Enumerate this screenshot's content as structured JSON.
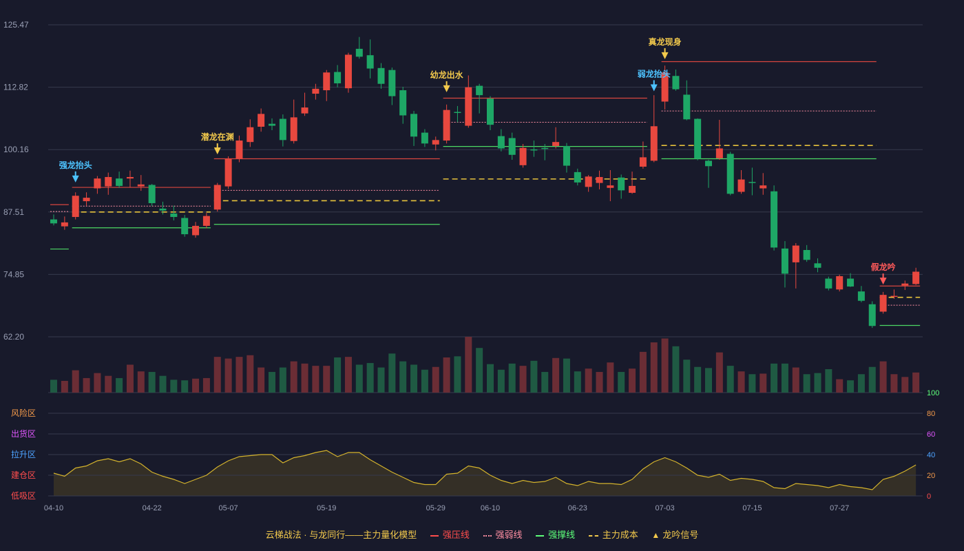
{
  "chart_data": {
    "type": "candlestick",
    "title": "云梯战法 · 与龙同行——主力量化模型",
    "x_ticks": [
      "04-10",
      "04-22",
      "05-07",
      "05-19",
      "05-29",
      "06-10",
      "06-23",
      "07-03",
      "07-15",
      "07-27"
    ],
    "price_axis": {
      "ticks": [
        "62.20",
        "74.85",
        "87.51",
        "100.16",
        "112.82",
        "125.47"
      ],
      "ylim": [
        62.2,
        125.47
      ]
    },
    "osc_axis": {
      "ticks": [
        "0",
        "20",
        "40",
        "60",
        "80",
        "100"
      ],
      "ylim": [
        0,
        100
      ]
    },
    "zones": [
      {
        "label": "风险区",
        "value": 80,
        "color": "#f2994a"
      },
      {
        "label": "出货区",
        "value": 60,
        "color": "#e056fd"
      },
      {
        "label": "拉升区",
        "value": 40,
        "color": "#4da3ff"
      },
      {
        "label": "建仓区",
        "value": 20,
        "color": "#ff4d4d"
      },
      {
        "label": "低吸区",
        "value": 0,
        "color": "#ff4d4d"
      }
    ],
    "colors": {
      "up": "#e8483f",
      "down": "#1ea766",
      "vol_up": "#6b2d35",
      "vol_down": "#1f5a43",
      "osc": "#d4b32c",
      "grid": "#363a4d",
      "axis": "#9aa0b5"
    },
    "candles": [
      [
        86.0,
        85.2,
        87.0,
        84.8,
        "04-10"
      ],
      [
        84.6,
        85.4,
        86.6,
        83.9,
        ""
      ],
      [
        86.5,
        90.8,
        91.5,
        86.0,
        ""
      ],
      [
        89.7,
        90.4,
        91.5,
        88.8,
        ""
      ],
      [
        92.3,
        94.3,
        94.8,
        91.2,
        ""
      ],
      [
        92.7,
        94.6,
        95.5,
        91.0,
        ""
      ],
      [
        94.3,
        92.8,
        95.7,
        92.4,
        ""
      ],
      [
        94.3,
        94.6,
        95.9,
        92.5,
        ""
      ],
      [
        92.7,
        93.1,
        95.0,
        91.8,
        ""
      ],
      [
        93.0,
        89.3,
        93.2,
        88.7,
        "04-22"
      ],
      [
        88.2,
        87.8,
        89.6,
        87.0,
        ""
      ],
      [
        87.2,
        86.5,
        88.8,
        85.8,
        ""
      ],
      [
        86.3,
        83.0,
        86.9,
        82.5,
        ""
      ],
      [
        82.8,
        84.7,
        85.5,
        82.3,
        ""
      ],
      [
        84.7,
        86.7,
        87.3,
        84.2,
        ""
      ],
      [
        88.0,
        93.0,
        93.4,
        87.6,
        ""
      ],
      [
        92.7,
        98.3,
        98.8,
        92.2,
        "05-07"
      ],
      [
        98.3,
        102.0,
        103.0,
        97.6,
        ""
      ],
      [
        101.7,
        104.7,
        106.3,
        100.7,
        ""
      ],
      [
        104.8,
        107.4,
        108.5,
        103.8,
        ""
      ],
      [
        105.4,
        105.0,
        106.5,
        104.1,
        ""
      ],
      [
        106.4,
        102.1,
        107.3,
        100.8,
        ""
      ],
      [
        101.9,
        106.7,
        110.3,
        101.4,
        ""
      ],
      [
        107.5,
        108.7,
        111.7,
        107.0,
        ""
      ],
      [
        111.5,
        112.5,
        113.5,
        110.3,
        ""
      ],
      [
        112.2,
        115.8,
        116.3,
        110.0,
        "05-19"
      ],
      [
        115.9,
        113.6,
        117.3,
        112.8,
        ""
      ],
      [
        112.6,
        119.4,
        119.8,
        111.7,
        ""
      ],
      [
        120.6,
        119.0,
        123.0,
        118.6,
        ""
      ],
      [
        119.3,
        116.6,
        122.5,
        114.6,
        ""
      ],
      [
        116.7,
        113.5,
        117.7,
        112.5,
        ""
      ],
      [
        116.3,
        111.0,
        116.8,
        109.2,
        ""
      ],
      [
        112.2,
        107.1,
        112.9,
        105.4,
        ""
      ],
      [
        107.4,
        102.8,
        108.0,
        100.9,
        ""
      ],
      [
        103.6,
        101.4,
        104.3,
        100.7,
        ""
      ],
      [
        101.2,
        102.1,
        102.8,
        100.0,
        "05-29"
      ],
      [
        102.0,
        108.2,
        109.3,
        101.4,
        ""
      ],
      [
        107.8,
        107.6,
        109.0,
        105.7,
        ""
      ],
      [
        105.0,
        112.8,
        115.2,
        104.6,
        ""
      ],
      [
        113.1,
        111.2,
        113.5,
        107.5,
        ""
      ],
      [
        110.5,
        105.2,
        111.0,
        104.1,
        "06-10"
      ],
      [
        102.9,
        100.4,
        104.3,
        99.8,
        ""
      ],
      [
        102.5,
        99.1,
        103.6,
        98.1,
        ""
      ],
      [
        97.0,
        100.5,
        101.3,
        96.5,
        ""
      ],
      [
        100.2,
        100.0,
        102.0,
        98.7,
        ""
      ],
      [
        100.5,
        100.4,
        101.3,
        98.0,
        ""
      ],
      [
        100.9,
        101.7,
        104.7,
        100.4,
        ""
      ],
      [
        100.9,
        96.9,
        101.5,
        95.5,
        ""
      ],
      [
        95.6,
        93.5,
        96.3,
        92.9,
        "06-23"
      ],
      [
        92.6,
        94.7,
        95.0,
        91.6,
        ""
      ],
      [
        93.4,
        94.6,
        95.9,
        92.1,
        ""
      ],
      [
        92.4,
        92.9,
        96.0,
        89.7,
        ""
      ],
      [
        94.5,
        91.9,
        95.1,
        90.2,
        ""
      ],
      [
        91.4,
        92.8,
        95.7,
        91.2,
        ""
      ],
      [
        96.7,
        98.6,
        101.8,
        96.3,
        ""
      ],
      [
        97.9,
        104.9,
        111.2,
        97.6,
        ""
      ],
      [
        109.9,
        115.8,
        117.2,
        108.3,
        "07-03"
      ],
      [
        115.1,
        112.4,
        116.4,
        112.1,
        ""
      ],
      [
        111.3,
        106.3,
        114.2,
        106.1,
        ""
      ],
      [
        106.4,
        98.3,
        106.5,
        98.0,
        ""
      ],
      [
        97.9,
        96.8,
        98.1,
        92.4,
        ""
      ],
      [
        98.4,
        100.4,
        106.2,
        98.1,
        ""
      ],
      [
        99.3,
        91.2,
        99.7,
        90.9,
        ""
      ],
      [
        91.6,
        94.1,
        96.0,
        91.2,
        ""
      ],
      [
        93.6,
        93.4,
        96.5,
        90.9,
        "07-15"
      ],
      [
        92.3,
        92.9,
        95.4,
        91.0,
        ""
      ],
      [
        91.7,
        80.3,
        92.9,
        79.7,
        ""
      ],
      [
        80.1,
        75.0,
        81.6,
        72.2,
        ""
      ],
      [
        77.3,
        80.7,
        81.2,
        72.0,
        ""
      ],
      [
        79.8,
        77.8,
        80.8,
        77.4,
        ""
      ],
      [
        77.1,
        76.2,
        78.1,
        75.3,
        ""
      ],
      [
        74.0,
        72.0,
        74.4,
        71.6,
        ""
      ],
      [
        71.8,
        74.5,
        74.8,
        71.4,
        "07-27"
      ],
      [
        74.0,
        72.4,
        75.1,
        72.3,
        ""
      ],
      [
        71.4,
        69.5,
        72.5,
        69.2,
        ""
      ],
      [
        68.8,
        64.4,
        69.4,
        64.0,
        ""
      ],
      [
        67.3,
        70.7,
        71.3,
        66.9,
        ""
      ],
      [
        70.4,
        70.5,
        71.8,
        69.9,
        ""
      ],
      [
        72.6,
        73.0,
        73.6,
        71.7,
        ""
      ],
      [
        72.9,
        75.4,
        76.2,
        72.7,
        ""
      ]
    ],
    "volume": [
      0.23,
      0.21,
      0.4,
      0.26,
      0.35,
      0.3,
      0.26,
      0.5,
      0.38,
      0.37,
      0.3,
      0.23,
      0.22,
      0.25,
      0.26,
      0.64,
      0.61,
      0.64,
      0.67,
      0.45,
      0.37,
      0.45,
      0.56,
      0.52,
      0.48,
      0.48,
      0.63,
      0.64,
      0.5,
      0.53,
      0.45,
      0.7,
      0.56,
      0.5,
      0.41,
      0.46,
      0.63,
      0.65,
      1.0,
      0.8,
      0.51,
      0.41,
      0.52,
      0.48,
      0.57,
      0.37,
      0.62,
      0.61,
      0.38,
      0.43,
      0.37,
      0.54,
      0.37,
      0.43,
      0.73,
      0.9,
      0.97,
      0.83,
      0.59,
      0.46,
      0.44,
      0.72,
      0.48,
      0.38,
      0.33,
      0.34,
      0.52,
      0.52,
      0.45,
      0.33,
      0.35,
      0.42,
      0.24,
      0.22,
      0.33,
      0.46,
      0.56,
      0.33,
      0.28,
      0.36
    ],
    "oscillator": [
      22,
      19,
      27,
      29,
      34,
      36,
      33,
      36,
      31,
      23,
      19,
      16,
      12,
      16,
      20,
      28,
      34,
      38,
      39,
      40,
      40,
      32,
      37,
      39,
      42,
      44,
      38,
      42,
      42,
      35,
      29,
      23,
      18,
      13,
      11,
      11,
      21,
      22,
      29,
      27,
      20,
      15,
      12,
      15,
      13,
      14,
      18,
      12,
      10,
      14,
      12,
      12,
      11,
      16,
      26,
      33,
      37,
      33,
      27,
      20,
      18,
      21,
      15,
      17,
      16,
      14,
      8,
      7,
      12,
      11,
      10,
      8,
      11,
      9,
      8,
      6,
      16,
      19,
      24,
      30
    ],
    "lines": [
      {
        "kind": "strong_pressure",
        "from": 2,
        "to": 14,
        "value": 92.5
      },
      {
        "kind": "weak_pressure",
        "from": 2,
        "to": 14,
        "value": 88.7
      },
      {
        "kind": "main_cost",
        "from": 2,
        "to": 14,
        "value": 87.5
      },
      {
        "kind": "strong_support",
        "from": 2,
        "to": 14,
        "value": 84.3
      },
      {
        "kind": "strong_support",
        "from": 0,
        "to": 1,
        "value": 80.0
      },
      {
        "kind": "weak_pressure",
        "from": 0,
        "to": 1,
        "value": 87.6
      },
      {
        "kind": "strong_pressure",
        "from": 0,
        "to": 1,
        "value": 89.0
      },
      {
        "kind": "strong_pressure",
        "from": 15,
        "to": 35,
        "value": 98.3
      },
      {
        "kind": "weak_pressure",
        "from": 15,
        "to": 35,
        "value": 91.9
      },
      {
        "kind": "main_cost",
        "from": 15,
        "to": 35,
        "value": 89.8
      },
      {
        "kind": "strong_support",
        "from": 15,
        "to": 35,
        "value": 85.0
      },
      {
        "kind": "strong_pressure",
        "from": 36,
        "to": 54,
        "value": 110.6
      },
      {
        "kind": "weak_pressure",
        "from": 36,
        "to": 54,
        "value": 105.7
      },
      {
        "kind": "strong_support",
        "from": 36,
        "to": 54,
        "value": 100.8
      },
      {
        "kind": "main_cost",
        "from": 36,
        "to": 54,
        "value": 94.2
      },
      {
        "kind": "strong_pressure",
        "from": 56,
        "to": 75,
        "value": 118.0
      },
      {
        "kind": "weak_pressure",
        "from": 56,
        "to": 75,
        "value": 108.0
      },
      {
        "kind": "main_cost",
        "from": 56,
        "to": 75,
        "value": 101.0
      },
      {
        "kind": "strong_support",
        "from": 56,
        "to": 75,
        "value": 98.3
      },
      {
        "kind": "strong_pressure",
        "from": 76,
        "to": 79,
        "value": 72.5
      },
      {
        "kind": "main_cost",
        "from": 76,
        "to": 79,
        "value": 70.2
      },
      {
        "kind": "weak_pressure",
        "from": 76,
        "to": 79,
        "value": 68.6
      },
      {
        "kind": "strong_support",
        "from": 76,
        "to": 79,
        "value": 64.5
      }
    ],
    "signals": [
      {
        "label": "强龙抬头",
        "index": 2,
        "price": 93.5,
        "color": "#4dc3ff",
        "dir": "down"
      },
      {
        "label": "潜龙在渊",
        "index": 15,
        "price": 99.2,
        "color": "#f2c94c",
        "dir": "down"
      },
      {
        "label": "幼龙出水",
        "index": 36,
        "price": 111.8,
        "color": "#f2c94c",
        "dir": "down"
      },
      {
        "label": "弱龙抬头",
        "index": 55,
        "price": 112.0,
        "color": "#4dc3ff",
        "dir": "down"
      },
      {
        "label": "真龙现身",
        "index": 56,
        "price": 118.5,
        "color": "#f2c94c",
        "dir": "down"
      },
      {
        "label": "假龙吟",
        "index": 76,
        "price": 72.8,
        "color": "#ff5a5a",
        "dir": "down"
      }
    ]
  },
  "legend": {
    "title": "云梯战法 · 与龙同行——主力量化模型",
    "items": [
      {
        "label": "强压线",
        "color": "#ff4d4d"
      },
      {
        "label": "强弱线",
        "color": "#ff8fa3"
      },
      {
        "label": "强撑线",
        "color": "#5dff7a"
      },
      {
        "label": "主力成本",
        "color": "#f2c94c"
      },
      {
        "label": "龙吟信号",
        "color": "#f2c94c"
      }
    ]
  }
}
